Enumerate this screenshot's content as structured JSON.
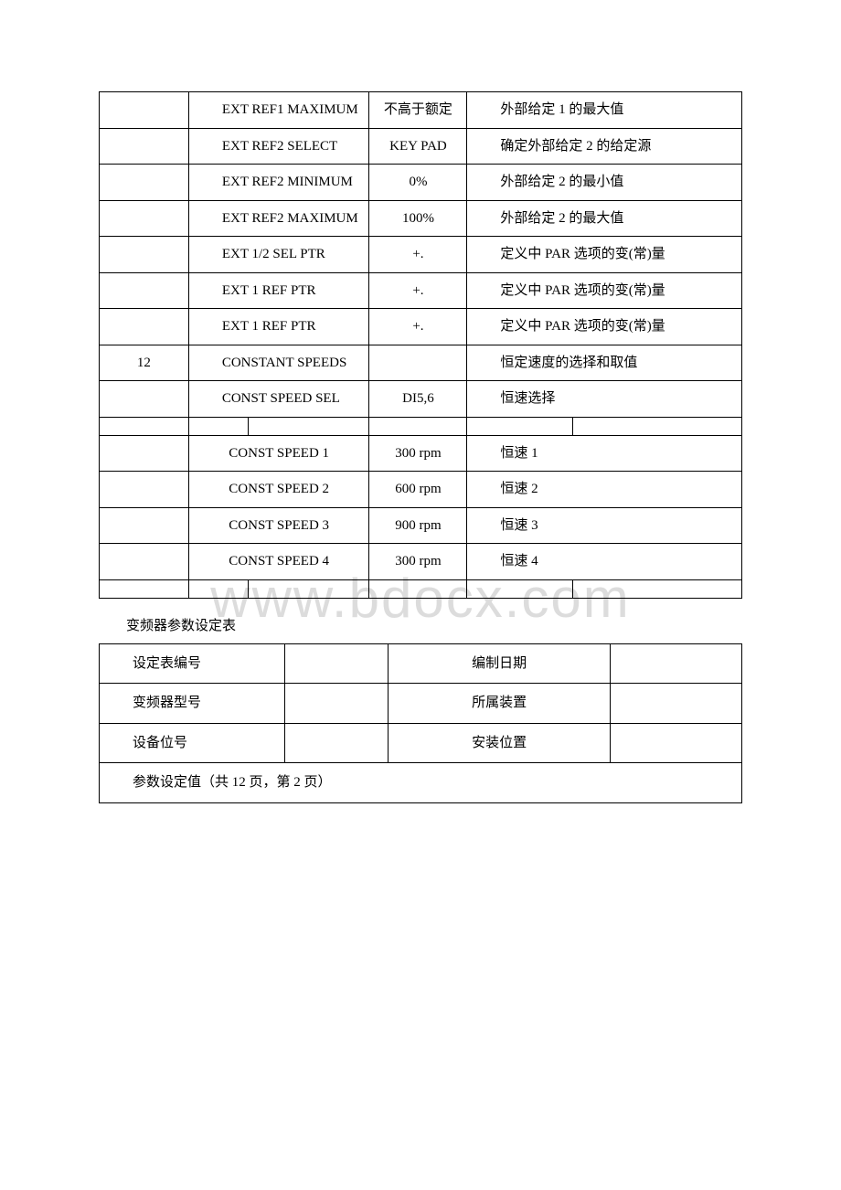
{
  "watermark": "www.bdocx.com",
  "table1": {
    "rows": [
      {
        "c1": "",
        "c2": "EXT REF1 MAXIMUM",
        "c3": "不高于额定",
        "c4": "外部给定 1 的最大值"
      },
      {
        "c1": "",
        "c2": "EXT REF2 SELECT",
        "c3": "KEY PAD",
        "c4": "确定外部给定 2 的给定源"
      },
      {
        "c1": "",
        "c2": "EXT REF2 MINIMUM",
        "c3": "0%",
        "c4": "外部给定 2 的最小值"
      },
      {
        "c1": "",
        "c2": "EXT REF2 MAXIMUM",
        "c3": "100%",
        "c4": "外部给定 2 的最大值"
      },
      {
        "c1": "",
        "c2": "EXT 1/2 SEL PTR",
        "c3": "+.",
        "c4": "定义中 PAR 选项的变(常)量"
      },
      {
        "c1": "",
        "c2": "EXT 1 REF PTR",
        "c3": "+.",
        "c4": "定义中 PAR 选项的变(常)量"
      },
      {
        "c1": "",
        "c2": "EXT 1 REF PTR",
        "c3": "+.",
        "c4": "定义中 PAR 选项的变(常)量"
      },
      {
        "c1": "12",
        "c2": "CONSTANT SPEEDS",
        "c3": "",
        "c4": "恒定速度的选择和取值"
      },
      {
        "c1": "",
        "c2": "CONST SPEED SEL",
        "c3": "DI5,6",
        "c4": "恒速选择"
      }
    ],
    "thinRow": [
      "",
      "",
      "",
      "",
      "",
      ""
    ],
    "rowsB": [
      {
        "c1": "",
        "c2": "CONST SPEED 1",
        "c3": "300 rpm",
        "c4": "恒速 1"
      },
      {
        "c1": "",
        "c2": "CONST SPEED 2",
        "c3": "600 rpm",
        "c4": "恒速 2"
      },
      {
        "c1": "",
        "c2": "CONST SPEED 3",
        "c3": "900 rpm",
        "c4": "恒速 3"
      },
      {
        "c1": "",
        "c2": "CONST SPEED 4",
        "c3": "300 rpm",
        "c4": "恒速 4"
      }
    ]
  },
  "caption": "变频器参数设定表",
  "table2": {
    "r1": {
      "a": "设定表编号",
      "b": "",
      "c": "编制日期",
      "d": ""
    },
    "r2": {
      "a": "变频器型号",
      "b": "",
      "c": "所属装置",
      "d": ""
    },
    "r3": {
      "a": "设备位号",
      "b": "",
      "c": "安装位置",
      "d": ""
    },
    "r4": "参数设定值（共 12 页，第 2 页）"
  }
}
